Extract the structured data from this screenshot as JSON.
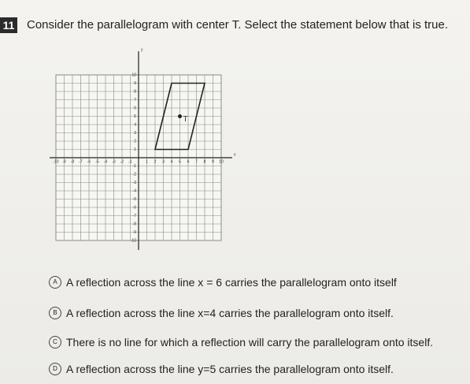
{
  "question": {
    "number": "11",
    "text": "Consider the parallelogram with center T.  Select the statement below that is true."
  },
  "graph": {
    "xticks": [
      -10,
      -9,
      -8,
      -7,
      -6,
      -5,
      -4,
      -3,
      -2,
      -1,
      1,
      2,
      3,
      4,
      5,
      6,
      7,
      8,
      9,
      10
    ],
    "yticks": [
      -10,
      -9,
      -8,
      -7,
      -6,
      -5,
      -4,
      -3,
      -2,
      -1,
      1,
      2,
      3,
      4,
      5,
      6,
      7,
      8,
      9,
      10
    ],
    "xlim": [
      -10,
      10
    ],
    "ylim": [
      -10,
      10
    ],
    "vertices": [
      [
        2,
        1
      ],
      [
        6,
        1
      ],
      [
        8,
        9
      ],
      [
        4,
        9
      ]
    ],
    "center": [
      5,
      5
    ],
    "center_label": "T",
    "x_axis_label": "x",
    "y_axis_label": "y"
  },
  "options": [
    {
      "letter": "A",
      "text": "A reflection across the line x = 6 carries the parallelogram onto itself"
    },
    {
      "letter": "B",
      "text": "A reflection across the line x=4 carries the parallelogram onto itself."
    },
    {
      "letter": "C",
      "text": "There is no line for which a reflection will carry the parallelogram onto itself."
    },
    {
      "letter": "D",
      "text": "A reflection across the line y=5 carries the parallelogram onto itself."
    }
  ]
}
